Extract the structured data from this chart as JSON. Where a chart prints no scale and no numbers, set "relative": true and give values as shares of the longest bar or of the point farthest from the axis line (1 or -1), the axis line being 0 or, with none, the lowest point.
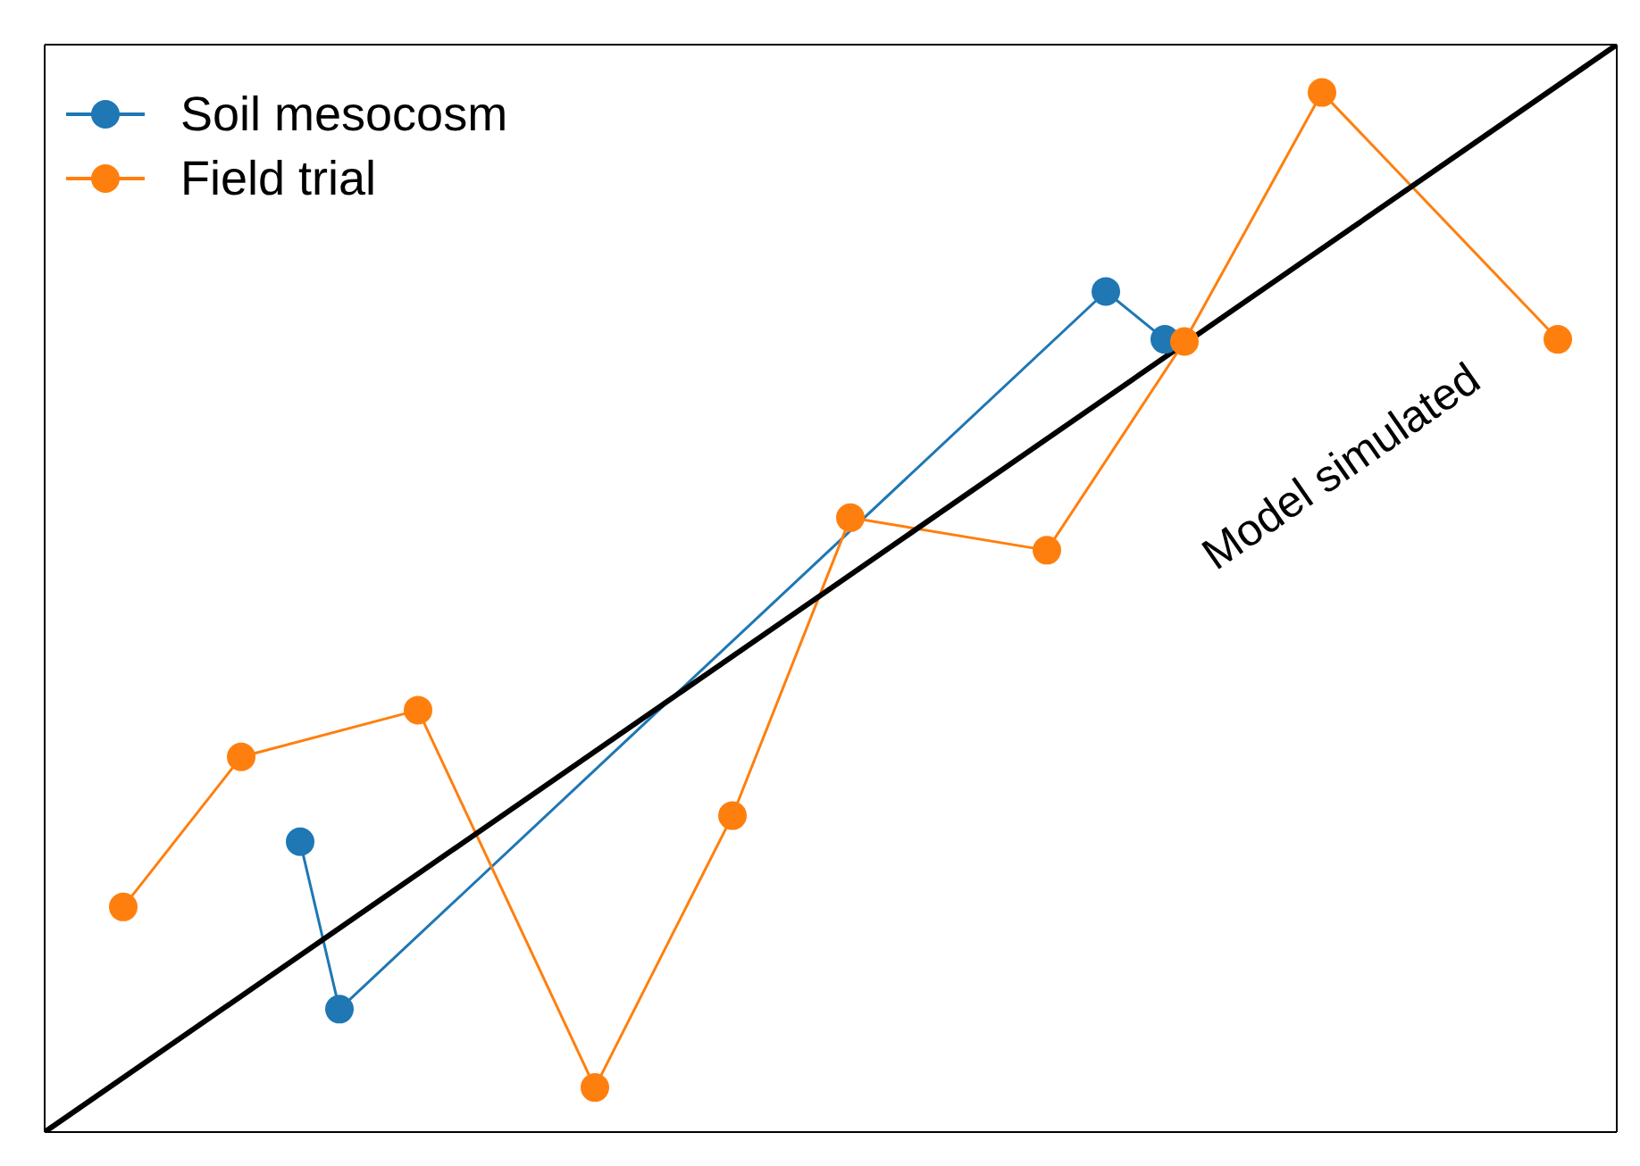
{
  "chart_data": {
    "type": "line",
    "relative": true,
    "legend": "top left",
    "marker": "circle",
    "categories": [
      null,
      null,
      null,
      null,
      null,
      null,
      null,
      null,
      null,
      null,
      null,
      null,
      null,
      null,
      null,
      null,
      null,
      null,
      null,
      null,
      null,
      null,
      null,
      null,
      null,
      null,
      null,
      null,
      null,
      null,
      null,
      null,
      null,
      null,
      null,
      null,
      null,
      null,
      null,
      null,
      null,
      null,
      null,
      null,
      null,
      null,
      null,
      null,
      null,
      null,
      null,
      null,
      null,
      null,
      null,
      null,
      null,
      null,
      null,
      null,
      null,
      null,
      null,
      null,
      null,
      null,
      null,
      null,
      null,
      null,
      null,
      null,
      null,
      null,
      null,
      null,
      null,
      null,
      null,
      null,
      null
    ],
    "series": [
      {
        "name": "Soil mesocosm",
        "color": "#1f77b4",
        "values": [
          null,
          null,
          null,
          null,
          null,
          null,
          null,
          null,
          null,
          null,
          null,
          null,
          null,
          0.267,
          null,
          0.113,
          null,
          null,
          null,
          null,
          null,
          null,
          null,
          null,
          null,
          null,
          null,
          null,
          null,
          null,
          null,
          null,
          null,
          null,
          null,
          null,
          null,
          null,
          null,
          null,
          null,
          null,
          null,
          null,
          null,
          null,
          null,
          null,
          null,
          null,
          null,
          null,
          null,
          null,
          0.773,
          null,
          null,
          0.729,
          null,
          null,
          null,
          null,
          null,
          null,
          null,
          null,
          null,
          null,
          null,
          null,
          null,
          null,
          null,
          null,
          null,
          null,
          null,
          null,
          null,
          null,
          null
        ]
      },
      {
        "name": "Field trial",
        "color": "#ff7f0e",
        "values": [
          null,
          null,
          null,
          null,
          0.207,
          null,
          null,
          null,
          null,
          null,
          0.345,
          null,
          null,
          null,
          null,
          null,
          null,
          null,
          null,
          0.388,
          null,
          null,
          null,
          null,
          null,
          null,
          null,
          null,
          0.041,
          null,
          null,
          null,
          null,
          null,
          null,
          0.291,
          null,
          null,
          null,
          null,
          null,
          0.565,
          null,
          null,
          null,
          null,
          null,
          null,
          null,
          null,
          null,
          0.535,
          null,
          null,
          null,
          null,
          null,
          null,
          0.727,
          null,
          null,
          null,
          null,
          null,
          null,
          0.956,
          null,
          null,
          null,
          null,
          null,
          null,
          null,
          null,
          null,
          null,
          null,
          0.729,
          null,
          null,
          null
        ]
      },
      {
        "name": "Model simulated",
        "color": "#000000",
        "marker": "none",
        "values": [
          0,
          null,
          null,
          null,
          null,
          null,
          null,
          null,
          null,
          null,
          null,
          null,
          null,
          null,
          null,
          null,
          null,
          null,
          null,
          null,
          null,
          null,
          null,
          null,
          null,
          null,
          null,
          null,
          null,
          null,
          null,
          null,
          null,
          null,
          null,
          null,
          null,
          null,
          null,
          null,
          null,
          null,
          null,
          null,
          null,
          null,
          null,
          null,
          null,
          null,
          null,
          null,
          null,
          null,
          null,
          null,
          null,
          null,
          null,
          null,
          null,
          null,
          null,
          null,
          null,
          null,
          null,
          null,
          null,
          null,
          null,
          null,
          null,
          null,
          null,
          null,
          null,
          null,
          null,
          null,
          1
        ]
      }
    ]
  }
}
